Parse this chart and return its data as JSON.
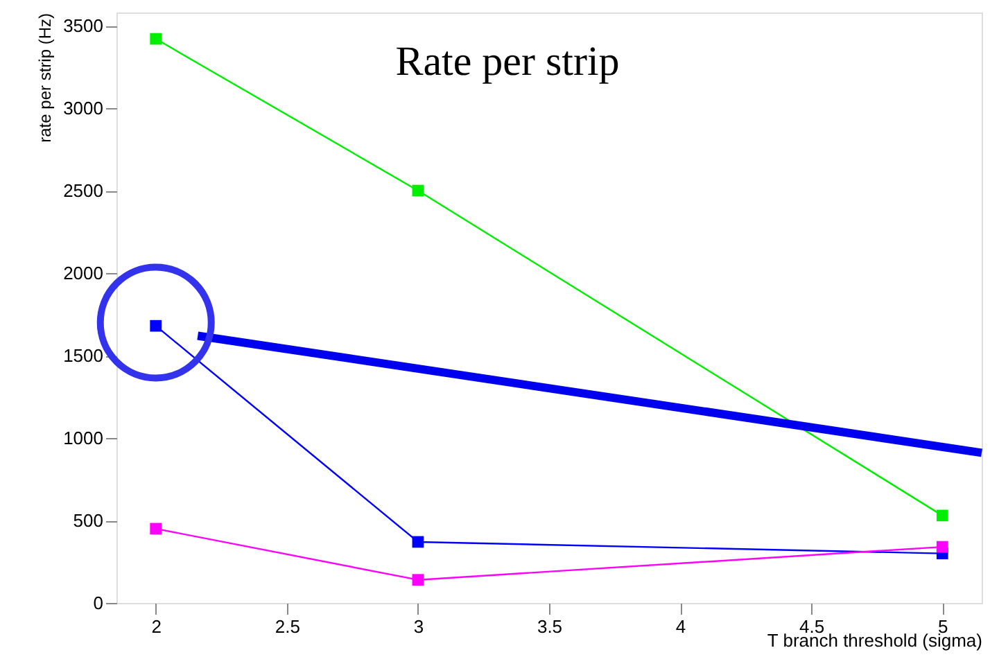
{
  "chart_data": {
    "type": "line",
    "title": "Rate per strip",
    "xlabel": "T branch threshold (sigma)",
    "ylabel": "rate per strip (Hz)",
    "x": [
      2,
      3,
      5
    ],
    "series": [
      {
        "color": "#00ee00",
        "values": [
          3420,
          2500,
          530
        ]
      },
      {
        "color": "#0000ff",
        "values": [
          1680,
          370,
          300
        ]
      },
      {
        "color": "#ff00ff",
        "values": [
          450,
          140,
          340
        ]
      },
      {
        "type": "line",
        "marker": "none",
        "color": "#0000ee",
        "x": [
          2.16,
          5.15
        ],
        "values": [
          1620,
          910
        ]
      }
    ],
    "xlim": [
      1.85,
      5.15
    ],
    "ylim": [
      0,
      3580
    ],
    "xticks": [
      2,
      2.5,
      3,
      3.5,
      4,
      4.5,
      5
    ],
    "yticks": [
      0,
      500,
      1000,
      1500,
      2000,
      2500,
      3000,
      3500
    ],
    "grid": false,
    "marker": "square",
    "line_style": "solid"
  }
}
